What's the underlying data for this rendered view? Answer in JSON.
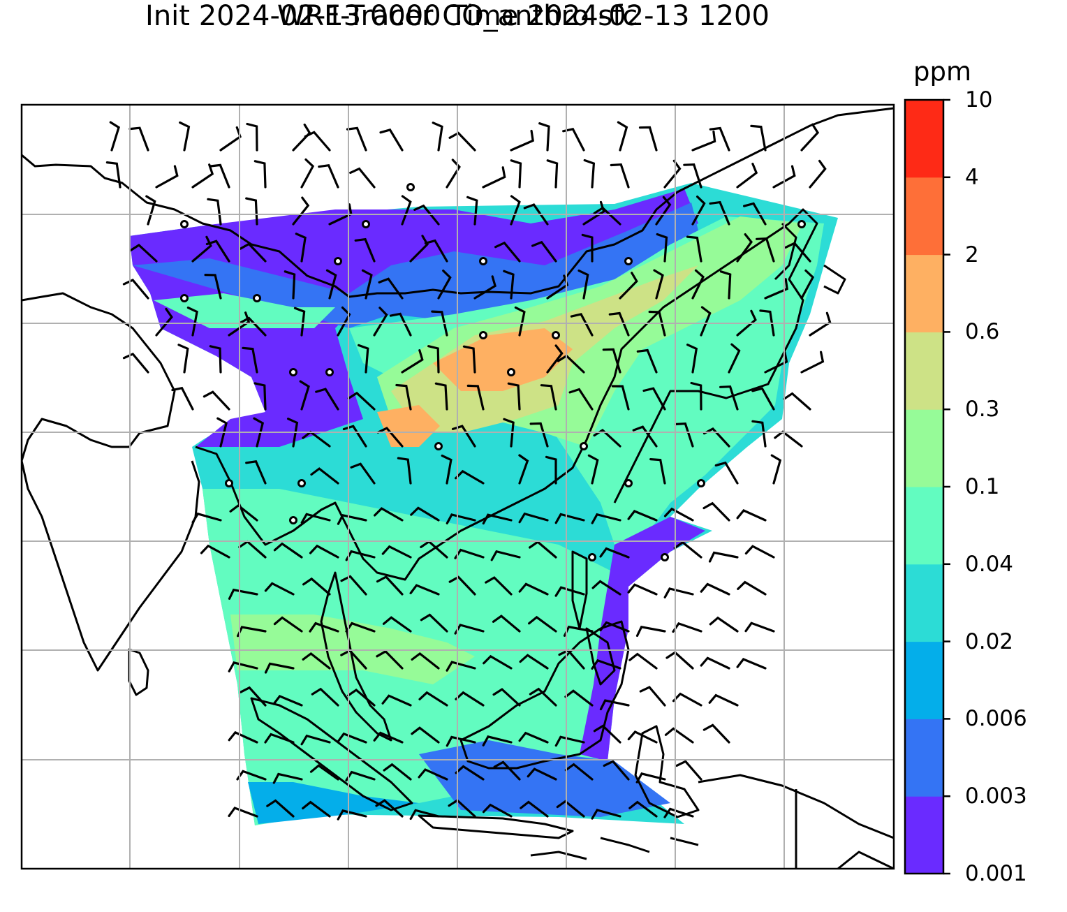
{
  "title_line1": "WRF-Tracer CO_anthro sfc",
  "title_line2": "Init 2024-02-13 0000 Time 2024-02-13 1200",
  "colorbar": {
    "unit": "ppm",
    "levels": [
      "0.001",
      "0.003",
      "0.006",
      "0.02",
      "0.04",
      "0.1",
      "0.3",
      "0.6",
      "2",
      "4",
      "10"
    ],
    "colors": [
      "#6a2bff",
      "#3474f4",
      "#04aeea",
      "#2cdcd6",
      "#62fcc0",
      "#96fb98",
      "#cde286",
      "#feb062",
      "#fe6f38",
      "#fe2a16"
    ]
  },
  "map": {
    "background": "#ffffff",
    "gridline_color": "#b0b0b0",
    "coastline_color": "#000000",
    "barb_color": "#000000"
  }
}
